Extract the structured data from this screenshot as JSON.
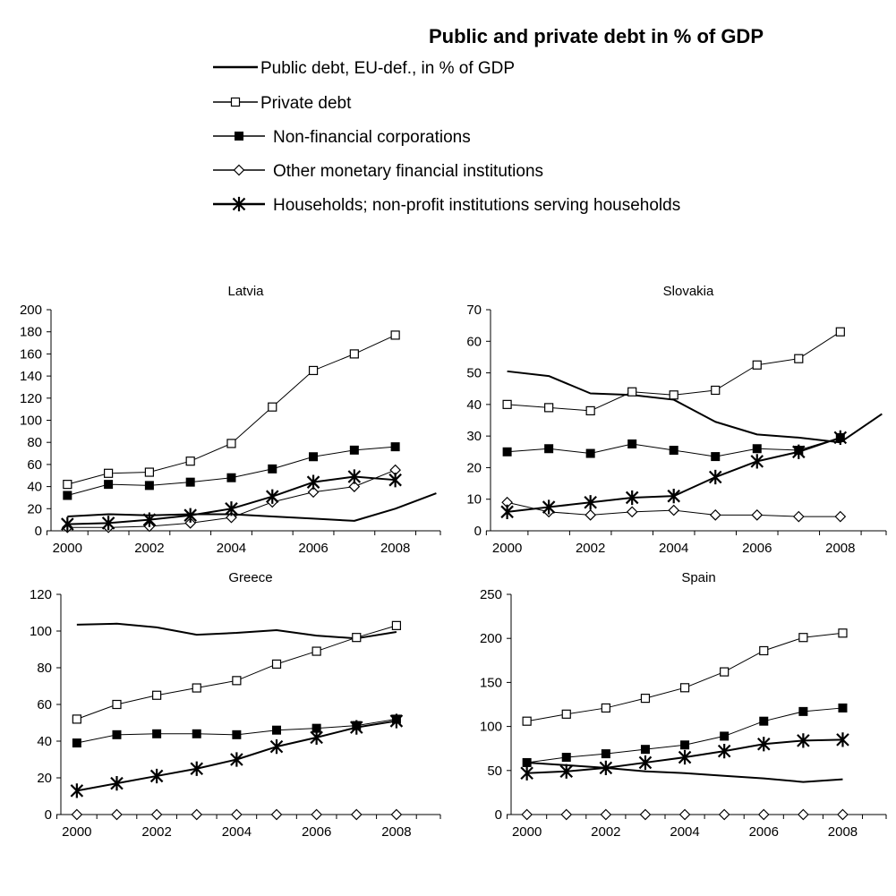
{
  "title": "Public and private debt in % of GDP",
  "legend": [
    {
      "key": "public",
      "label": "Public debt, EU-def.,  in % of GDP",
      "marker": "none"
    },
    {
      "key": "private",
      "label": "Private debt",
      "marker": "open-square"
    },
    {
      "key": "nfc",
      "label": "Non-financial corporations",
      "marker": "filled-square"
    },
    {
      "key": "omfi",
      "label": "Other monetary financial institutions",
      "marker": "open-diamond"
    },
    {
      "key": "hh",
      "label": "Households; non-profit institutions serving households",
      "marker": "star"
    }
  ],
  "colors": {
    "line": "#000000",
    "open_fill": "#ffffff",
    "filled": "#000000"
  },
  "chart_data": [
    {
      "type": "line",
      "title": "Latvia",
      "xticks": [
        "2000",
        "2002",
        "2004",
        "2006",
        "2008"
      ],
      "xlim": [
        1999.6,
        2009.1
      ],
      "ylim": [
        0,
        200
      ],
      "yticks": [
        0,
        20,
        40,
        60,
        80,
        100,
        120,
        140,
        160,
        180,
        200
      ],
      "series": [
        {
          "key": "public",
          "x": [
            2000,
            2001,
            2002,
            2003,
            2004,
            2005,
            2006,
            2007,
            2008,
            2009
          ],
          "y": [
            13,
            15,
            14,
            15,
            15,
            13,
            11,
            9,
            20,
            34
          ]
        },
        {
          "key": "private",
          "x": [
            2000,
            2001,
            2002,
            2003,
            2004,
            2005,
            2006,
            2007,
            2008
          ],
          "y": [
            42,
            52,
            53,
            63,
            79,
            112,
            145,
            160,
            177
          ]
        },
        {
          "key": "nfc",
          "x": [
            2000,
            2001,
            2002,
            2003,
            2004,
            2005,
            2006,
            2007,
            2008
          ],
          "y": [
            32,
            42,
            41,
            44,
            48,
            56,
            67,
            73,
            76
          ]
        },
        {
          "key": "omfi",
          "x": [
            2000,
            2001,
            2002,
            2003,
            2004,
            2005,
            2006,
            2007,
            2008
          ],
          "y": [
            3,
            3,
            4,
            7,
            12,
            26,
            35,
            40,
            55
          ]
        },
        {
          "key": "hh",
          "x": [
            2000,
            2001,
            2002,
            2003,
            2004,
            2005,
            2006,
            2007,
            2008
          ],
          "y": [
            6,
            7,
            10,
            14,
            20,
            31,
            44,
            49,
            46
          ]
        }
      ]
    },
    {
      "type": "line",
      "title": "Slovakia",
      "xticks": [
        "2000",
        "2002",
        "2004",
        "2006",
        "2008"
      ],
      "xlim": [
        1999.6,
        2009.1
      ],
      "ylim": [
        0,
        70
      ],
      "yticks": [
        0,
        10,
        20,
        30,
        40,
        50,
        60,
        70
      ],
      "series": [
        {
          "key": "public",
          "x": [
            2000,
            2001,
            2002,
            2003,
            2004,
            2005,
            2006,
            2007,
            2008,
            2009
          ],
          "y": [
            50.5,
            49,
            43.5,
            43,
            41.5,
            34.5,
            30.5,
            29.5,
            28,
            37
          ]
        },
        {
          "key": "private",
          "x": [
            2000,
            2001,
            2002,
            2003,
            2004,
            2005,
            2006,
            2007,
            2008
          ],
          "y": [
            40,
            39,
            38,
            44,
            43,
            44.5,
            52.5,
            54.5,
            63
          ]
        },
        {
          "key": "nfc",
          "x": [
            2000,
            2001,
            2002,
            2003,
            2004,
            2005,
            2006,
            2007,
            2008
          ],
          "y": [
            25,
            26,
            24.5,
            27.5,
            25.5,
            23.5,
            26,
            25.5,
            29.5
          ]
        },
        {
          "key": "omfi",
          "x": [
            2000,
            2001,
            2002,
            2003,
            2004,
            2005,
            2006,
            2007,
            2008
          ],
          "y": [
            9,
            6,
            5,
            6,
            6.5,
            5,
            5,
            4.5,
            4.5
          ]
        },
        {
          "key": "hh",
          "x": [
            2000,
            2001,
            2002,
            2003,
            2004,
            2005,
            2006,
            2007,
            2008
          ],
          "y": [
            6,
            7.5,
            9,
            10.5,
            11,
            17,
            22,
            25,
            29.5
          ]
        }
      ]
    },
    {
      "type": "line",
      "title": "Greece",
      "xticks": [
        "2000",
        "2002",
        "2004",
        "2006",
        "2008"
      ],
      "xlim": [
        1999.6,
        2009.1
      ],
      "ylim": [
        0,
        120
      ],
      "yticks": [
        0,
        20,
        40,
        60,
        80,
        100,
        120
      ],
      "series": [
        {
          "key": "public",
          "x": [
            2000,
            2001,
            2002,
            2003,
            2004,
            2005,
            2006,
            2007,
            2008
          ],
          "y": [
            103.5,
            104,
            102,
            98,
            99,
            100.5,
            97.5,
            96,
            99.5
          ]
        },
        {
          "key": "private",
          "x": [
            2000,
            2001,
            2002,
            2003,
            2004,
            2005,
            2006,
            2007,
            2008
          ],
          "y": [
            52,
            60,
            65,
            69,
            73,
            82,
            89,
            96.5,
            103
          ]
        },
        {
          "key": "nfc",
          "x": [
            2000,
            2001,
            2002,
            2003,
            2004,
            2005,
            2006,
            2007,
            2008
          ],
          "y": [
            39,
            43.5,
            44,
            44,
            43.5,
            46,
            47,
            48.5,
            52
          ]
        },
        {
          "key": "omfi",
          "x": [
            2000,
            2001,
            2002,
            2003,
            2004,
            2005,
            2006,
            2007,
            2008
          ],
          "y": [
            0,
            0,
            0,
            0,
            0,
            0,
            0,
            0,
            0
          ]
        },
        {
          "key": "hh",
          "x": [
            2000,
            2001,
            2002,
            2003,
            2004,
            2005,
            2006,
            2007,
            2008
          ],
          "y": [
            13,
            17,
            21,
            25,
            30,
            37,
            42,
            47.5,
            51
          ]
        }
      ]
    },
    {
      "type": "line",
      "title": "Spain",
      "xticks": [
        "2000",
        "2002",
        "2004",
        "2006",
        "2008"
      ],
      "xlim": [
        1999.6,
        2009.1
      ],
      "ylim": [
        0,
        250
      ],
      "yticks": [
        0,
        50,
        100,
        150,
        200,
        250
      ],
      "series": [
        {
          "key": "public",
          "x": [
            2000,
            2001,
            2002,
            2003,
            2004,
            2005,
            2006,
            2007,
            2008
          ],
          "y": [
            59,
            56,
            53,
            49,
            47,
            44,
            41,
            37,
            40
          ]
        },
        {
          "key": "private",
          "x": [
            2000,
            2001,
            2002,
            2003,
            2004,
            2005,
            2006,
            2007,
            2008
          ],
          "y": [
            106,
            114,
            121,
            132,
            144,
            162,
            186,
            201,
            206
          ]
        },
        {
          "key": "nfc",
          "x": [
            2000,
            2001,
            2002,
            2003,
            2004,
            2005,
            2006,
            2007,
            2008
          ],
          "y": [
            59,
            65,
            69,
            74,
            79,
            89,
            106,
            117,
            121
          ]
        },
        {
          "key": "omfi",
          "x": [
            2000,
            2001,
            2002,
            2003,
            2004,
            2005,
            2006,
            2007,
            2008
          ],
          "y": [
            0,
            0,
            0,
            0,
            0,
            0,
            0,
            0,
            0
          ]
        },
        {
          "key": "hh",
          "x": [
            2000,
            2001,
            2002,
            2003,
            2004,
            2005,
            2006,
            2007,
            2008
          ],
          "y": [
            47,
            49,
            53,
            59,
            65,
            72,
            80,
            84,
            85
          ]
        }
      ]
    }
  ]
}
